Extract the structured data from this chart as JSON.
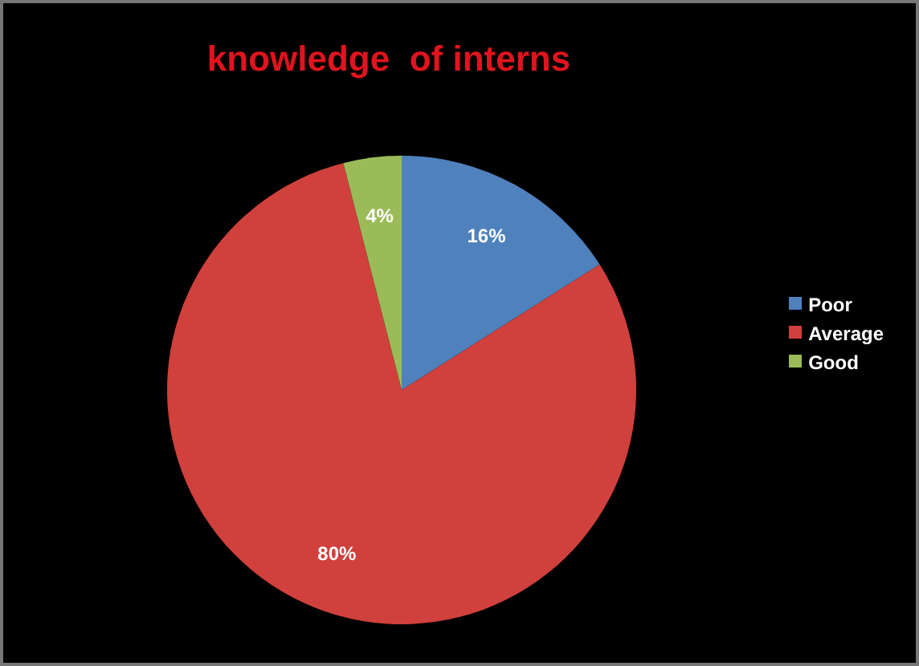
{
  "chart_data": {
    "type": "pie",
    "title": "knowledge  of interns",
    "categories": [
      "Poor",
      "Average",
      "Good"
    ],
    "values": [
      16,
      80,
      4
    ],
    "colors": [
      "#4f81bd",
      "#d0403c",
      "#9bbb59"
    ],
    "value_labels": [
      "16%",
      "80%",
      "4%"
    ],
    "legend": "right"
  }
}
